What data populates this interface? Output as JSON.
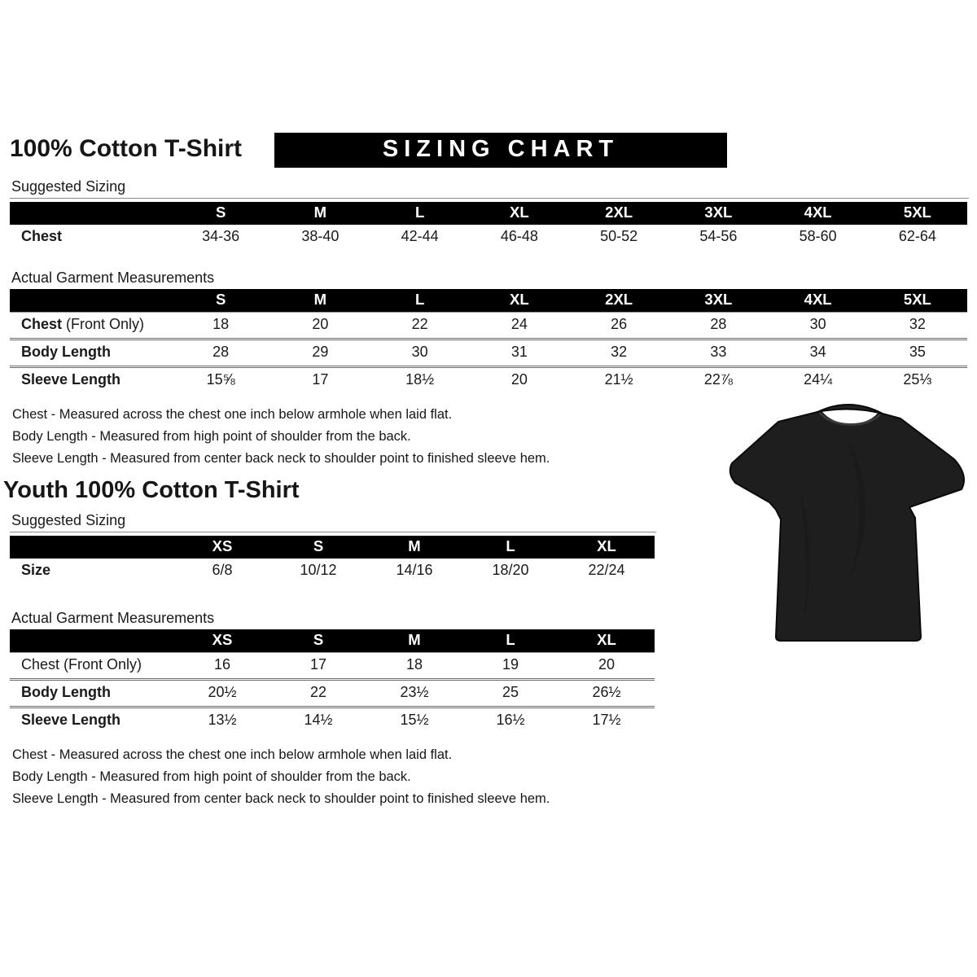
{
  "page": {
    "title": "100% Cotton T-Shirt",
    "banner": "SIZING CHART"
  },
  "adult": {
    "suggested_label": "Suggested Sizing",
    "suggested_table": {
      "columns": [
        "S",
        "M",
        "L",
        "XL",
        "2XL",
        "3XL",
        "4XL",
        "5XL"
      ],
      "rows": [
        {
          "label": "Chest",
          "suffix": "",
          "bold": true,
          "values": [
            "34-36",
            "38-40",
            "42-44",
            "46-48",
            "50-52",
            "54-56",
            "58-60",
            "62-64"
          ]
        }
      ]
    },
    "actual_label": "Actual Garment Measurements",
    "actual_table": {
      "columns": [
        "S",
        "M",
        "L",
        "XL",
        "2XL",
        "3XL",
        "4XL",
        "5XL"
      ],
      "rows": [
        {
          "label": "Chest",
          "suffix": " (Front Only)",
          "bold": true,
          "values": [
            "18",
            "20",
            "22",
            "24",
            "26",
            "28",
            "30",
            "32"
          ]
        },
        {
          "label": "Body Length",
          "suffix": "",
          "bold": true,
          "values": [
            "28",
            "29",
            "30",
            "31",
            "32",
            "33",
            "34",
            "35"
          ]
        },
        {
          "label": "Sleeve Length",
          "suffix": "",
          "bold": true,
          "values": [
            "15⅝",
            "17",
            "18½",
            "20",
            "21½",
            "22⅞",
            "24¼",
            "25⅓"
          ]
        }
      ]
    },
    "notes": [
      "Chest - Measured across the chest one inch below armhole when laid flat.",
      "Body Length - Measured from high point of shoulder from the back.",
      "Sleeve Length - Measured from center back neck to shoulder point to finished sleeve hem."
    ]
  },
  "youth": {
    "title": "Youth 100% Cotton T-Shirt",
    "suggested_label": "Suggested Sizing",
    "suggested_table": {
      "columns": [
        "XS",
        "S",
        "M",
        "L",
        "XL"
      ],
      "rows": [
        {
          "label": "Size",
          "suffix": "",
          "bold": true,
          "values": [
            "6/8",
            "10/12",
            "14/16",
            "18/20",
            "22/24"
          ]
        }
      ]
    },
    "actual_label": "Actual Garment Measurements",
    "actual_table": {
      "columns": [
        "XS",
        "S",
        "M",
        "L",
        "XL"
      ],
      "rows": [
        {
          "label": "Chest (Front Only)",
          "suffix": "",
          "bold": false,
          "values": [
            "16",
            "17",
            "18",
            "19",
            "20"
          ]
        },
        {
          "label": "Body Length",
          "suffix": "",
          "bold": true,
          "values": [
            "20½",
            "22",
            "23½",
            "25",
            "26½"
          ]
        },
        {
          "label": "Sleeve Length",
          "suffix": "",
          "bold": true,
          "values": [
            "13½",
            "14½",
            "15½",
            "16½",
            "17½"
          ]
        }
      ]
    },
    "notes": [
      "Chest - Measured across the chest one inch below armhole when laid flat.",
      "Body Length - Measured from high point of shoulder from the back.",
      "Sleeve Length - Measured from center back neck to shoulder point to finished sleeve hem."
    ]
  },
  "tshirt": {
    "color": "#1e1e1e"
  }
}
